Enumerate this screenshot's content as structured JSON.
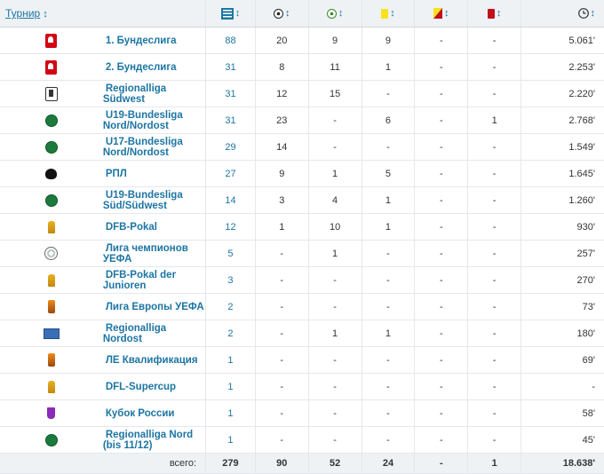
{
  "header": {
    "tournament_label": "Турнир",
    "sort_arrow": "↕",
    "columns": [
      {
        "key": "appearances",
        "icon": "lineup-icon"
      },
      {
        "key": "goals",
        "icon": "ball-icon"
      },
      {
        "key": "assists",
        "icon": "assist-ball-icon"
      },
      {
        "key": "yellow",
        "icon": "yellow-card-icon"
      },
      {
        "key": "second_yellow",
        "icon": "yellow-red-card-icon"
      },
      {
        "key": "red",
        "icon": "red-card-icon"
      },
      {
        "key": "minutes",
        "icon": "clock-icon"
      }
    ]
  },
  "rows": [
    {
      "logo": "bundesliga-logo",
      "name": "1. Бундеслига",
      "apps": "88",
      "goals": "20",
      "assists": "9",
      "yellow": "9",
      "second_yellow": "-",
      "red": "-",
      "minutes": "5.061'"
    },
    {
      "logo": "bundesliga-2-logo",
      "name": "2. Бундеслига",
      "apps": "31",
      "goals": "8",
      "assists": "11",
      "yellow": "1",
      "second_yellow": "-",
      "red": "-",
      "minutes": "2.253'"
    },
    {
      "logo": "regionalliga-logo",
      "name": "Regionalliga Südwest",
      "apps": "31",
      "goals": "12",
      "assists": "15",
      "yellow": "-",
      "second_yellow": "-",
      "red": "-",
      "minutes": "2.220'"
    },
    {
      "logo": "dfb-junior-logo",
      "name": "U19-Bundesliga Nord/Nordost",
      "apps": "31",
      "goals": "23",
      "assists": "-",
      "yellow": "6",
      "second_yellow": "-",
      "red": "1",
      "minutes": "2.768'"
    },
    {
      "logo": "dfb-junior-logo",
      "name": "U17-Bundesliga Nord/Nordost",
      "apps": "29",
      "goals": "14",
      "assists": "-",
      "yellow": "-",
      "second_yellow": "-",
      "red": "-",
      "minutes": "1.549'"
    },
    {
      "logo": "rpl-logo",
      "name": "РПЛ",
      "apps": "27",
      "goals": "9",
      "assists": "1",
      "yellow": "5",
      "second_yellow": "-",
      "red": "-",
      "minutes": "1.645'"
    },
    {
      "logo": "dfb-junior-logo",
      "name": "U19-Bundesliga Süd/Südwest",
      "apps": "14",
      "goals": "3",
      "assists": "4",
      "yellow": "1",
      "second_yellow": "-",
      "red": "-",
      "minutes": "1.260'"
    },
    {
      "logo": "dfb-pokal-logo",
      "name": "DFB-Pokal",
      "apps": "12",
      "goals": "1",
      "assists": "10",
      "yellow": "1",
      "second_yellow": "-",
      "red": "-",
      "minutes": "930'"
    },
    {
      "logo": "champions-league-logo",
      "name": "Лига чемпионов УЕФА",
      "apps": "5",
      "goals": "-",
      "assists": "1",
      "yellow": "-",
      "second_yellow": "-",
      "red": "-",
      "minutes": "257'"
    },
    {
      "logo": "dfb-pokal-junior-logo",
      "name": "DFB-Pokal der Junioren",
      "apps": "3",
      "goals": "-",
      "assists": "-",
      "yellow": "-",
      "second_yellow": "-",
      "red": "-",
      "minutes": "270'"
    },
    {
      "logo": "europa-league-logo",
      "name": "Лига Европы УЕФА",
      "apps": "2",
      "goals": "-",
      "assists": "-",
      "yellow": "-",
      "second_yellow": "-",
      "red": "-",
      "minutes": "73'"
    },
    {
      "logo": "regionalliga-nordost-logo",
      "name": "Regionalliga Nordost",
      "apps": "2",
      "goals": "-",
      "assists": "1",
      "yellow": "1",
      "second_yellow": "-",
      "red": "-",
      "minutes": "180'"
    },
    {
      "logo": "europa-league-logo",
      "name": "ЛЕ Квалификация",
      "apps": "1",
      "goals": "-",
      "assists": "-",
      "yellow": "-",
      "second_yellow": "-",
      "red": "-",
      "minutes": "69'"
    },
    {
      "logo": "supercup-logo",
      "name": "DFL-Supercup",
      "apps": "1",
      "goals": "-",
      "assists": "-",
      "yellow": "-",
      "second_yellow": "-",
      "red": "-",
      "minutes": "-"
    },
    {
      "logo": "russian-cup-logo",
      "name": "Кубок России",
      "apps": "1",
      "goals": "-",
      "assists": "-",
      "yellow": "-",
      "second_yellow": "-",
      "red": "-",
      "minutes": "58'"
    },
    {
      "logo": "dfb-logo",
      "name": "Regionalliga Nord (bis 11/12)",
      "apps": "1",
      "goals": "-",
      "assists": "-",
      "yellow": "-",
      "second_yellow": "-",
      "red": "-",
      "minutes": "45'"
    }
  ],
  "totals": {
    "label": "всего:",
    "apps": "279",
    "goals": "90",
    "assists": "52",
    "yellow": "24",
    "second_yellow": "-",
    "red": "1",
    "minutes": "18.638'"
  },
  "colors": {
    "link": "#1d75a3",
    "header_bg": "#eef2f5",
    "yellow_card": "#f8e21c",
    "red_card": "#c30d1a"
  }
}
